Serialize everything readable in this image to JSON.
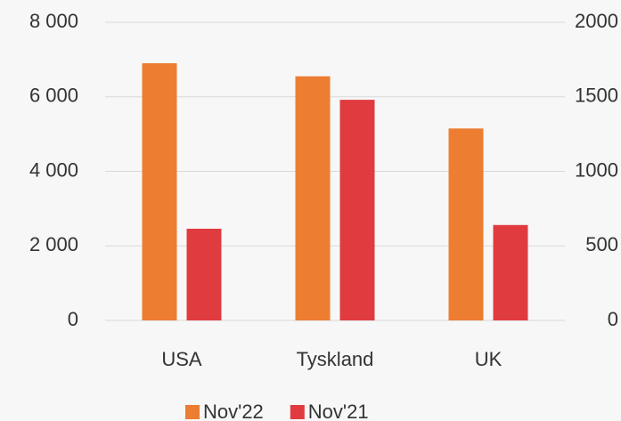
{
  "chart_data": {
    "type": "bar",
    "categories": [
      "USA",
      "Tyskland",
      "UK"
    ],
    "series": [
      {
        "name": "Nov'22",
        "color": "#ed7d31",
        "values": [
          6900,
          6550,
          5150
        ]
      },
      {
        "name": "Nov'21",
        "color": "#e03c40",
        "values": [
          615,
          1480,
          640
        ],
        "axis": "y2"
      }
    ],
    "ylim": [
      0,
      8000
    ],
    "yticks": [
      0,
      {
        "value": 2000,
        "label": "2 000"
      },
      {
        "value": 4000,
        "label": "4 000"
      },
      {
        "value": 6000,
        "label": "6 000"
      },
      {
        "value": 8000,
        "label": "8 000"
      }
    ],
    "y2lim": [
      0,
      2000
    ],
    "y2ticks": [
      0,
      500,
      1000,
      1500,
      2000
    ],
    "grid": true,
    "legend": "bottom"
  }
}
